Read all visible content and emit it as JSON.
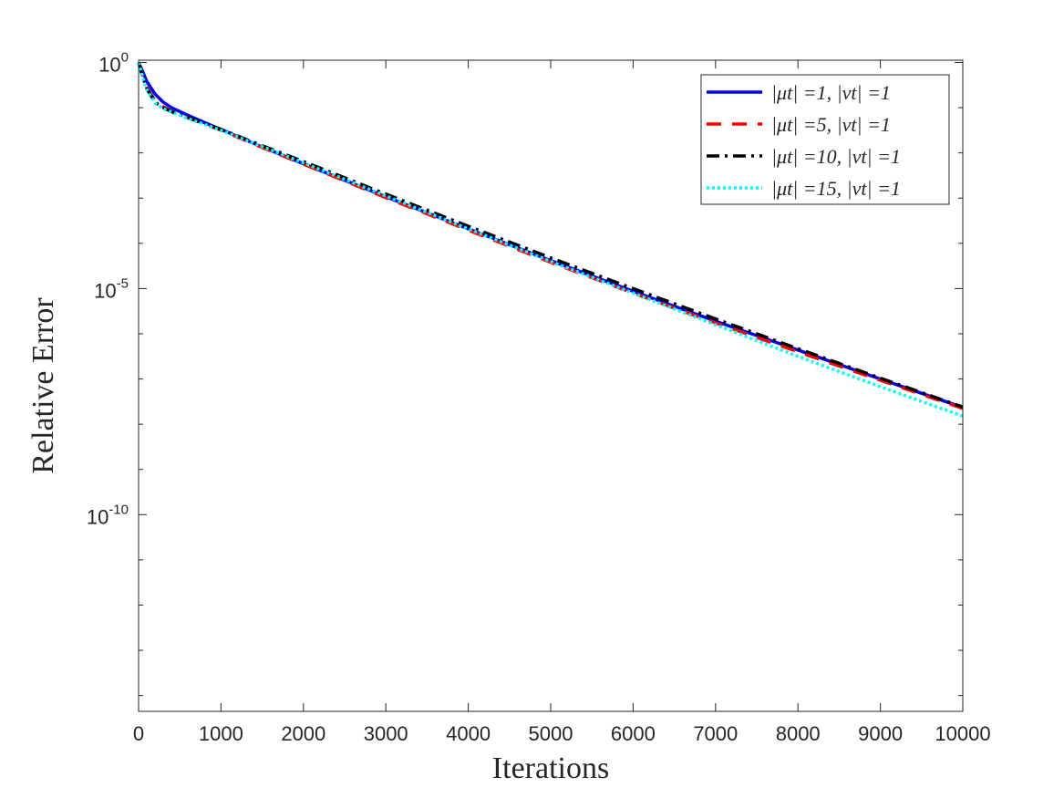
{
  "chart_data": {
    "type": "line",
    "xlabel": "Iterations",
    "ylabel": "Relative Error",
    "xlim": [
      0,
      10000
    ],
    "ylim_log10": [
      -14.35,
      0.05
    ],
    "y_scale": "log",
    "x_ticks": [
      0,
      1000,
      2000,
      3000,
      4000,
      5000,
      6000,
      7000,
      8000,
      9000,
      10000
    ],
    "x_tick_labels": [
      "0",
      "1000",
      "2000",
      "3000",
      "4000",
      "5000",
      "6000",
      "7000",
      "8000",
      "9000",
      "10000"
    ],
    "y_major_ticks": [
      {
        "base": "10",
        "exp": "0",
        "log10": 0
      },
      {
        "base": "10",
        "exp": "-5",
        "log10": -5
      },
      {
        "base": "10",
        "exp": "-10",
        "log10": -10
      }
    ],
    "y_minor_ticks_log10": [
      -1,
      -2,
      -3,
      -4,
      -6,
      -7,
      -8,
      -9,
      -11,
      -12,
      -13,
      -14
    ],
    "grid": false,
    "legend_position": "top-right",
    "series": [
      {
        "name": "|μt| =1, |νt| =1",
        "color": "#0000ff",
        "style": "solid",
        "x": [
          0,
          50,
          100,
          200,
          300,
          400,
          600,
          800,
          1000,
          1500,
          2000,
          3000,
          4000,
          5000,
          6000,
          7000,
          8000,
          9000,
          10000
        ],
        "y_log10": [
          0,
          -0.2,
          -0.42,
          -0.7,
          -0.88,
          -1.0,
          -1.17,
          -1.33,
          -1.48,
          -1.87,
          -2.24,
          -2.97,
          -3.68,
          -4.38,
          -5.06,
          -5.72,
          -6.36,
          -7.0,
          -7.63
        ]
      },
      {
        "name": "|μt| =5, |νt| =1",
        "color": "#ff0000",
        "style": "dashed",
        "x": [
          0,
          50,
          100,
          200,
          300,
          400,
          600,
          800,
          1000,
          1500,
          2000,
          3000,
          4000,
          5000,
          6000,
          7000,
          8000,
          9000,
          10000
        ],
        "y_log10": [
          0,
          -0.3,
          -0.55,
          -0.85,
          -0.98,
          -1.08,
          -1.22,
          -1.36,
          -1.5,
          -1.88,
          -2.25,
          -2.99,
          -3.71,
          -4.42,
          -5.1,
          -5.76,
          -6.4,
          -7.03,
          -7.65
        ]
      },
      {
        "name": "|μt| =10, |νt| =1",
        "color": "#000000",
        "style": "dashdot",
        "x": [
          0,
          50,
          100,
          200,
          300,
          400,
          600,
          800,
          1000,
          1500,
          2000,
          3000,
          4000,
          5000,
          6000,
          7000,
          8000,
          9000,
          10000
        ],
        "y_log10": [
          0,
          -0.32,
          -0.58,
          -0.88,
          -1.0,
          -1.09,
          -1.22,
          -1.35,
          -1.48,
          -1.84,
          -2.19,
          -2.91,
          -3.62,
          -4.32,
          -5.0,
          -5.67,
          -6.33,
          -6.98,
          -7.62
        ]
      },
      {
        "name": "|μt| =15, |νt| =1",
        "color": "#00ffff",
        "style": "dotted",
        "x": [
          0,
          50,
          100,
          200,
          300,
          400,
          600,
          800,
          1000,
          1500,
          2000,
          3000,
          4000,
          5000,
          6000,
          7000,
          8000,
          9000,
          10000
        ],
        "y_log10": [
          0,
          -0.33,
          -0.6,
          -0.9,
          -1.02,
          -1.1,
          -1.24,
          -1.37,
          -1.5,
          -1.86,
          -2.22,
          -2.95,
          -3.68,
          -4.4,
          -5.1,
          -5.8,
          -6.5,
          -7.17,
          -7.82
        ]
      }
    ]
  }
}
